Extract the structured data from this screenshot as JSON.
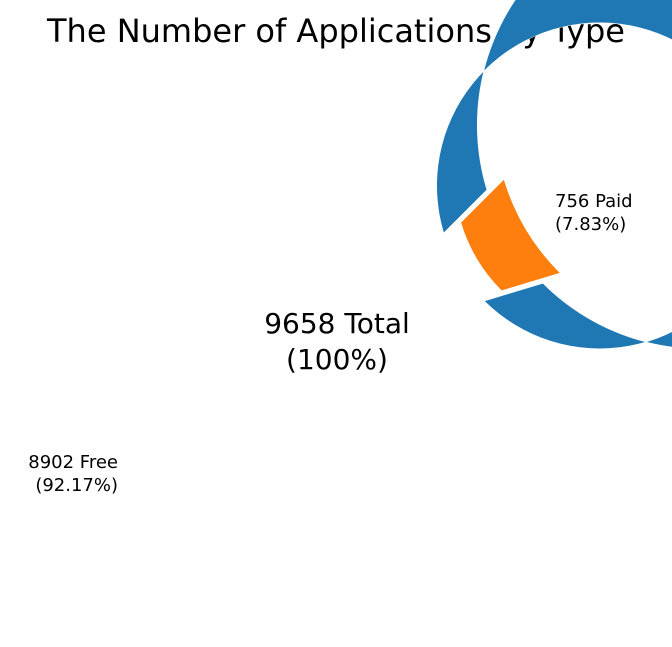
{
  "chart_data": {
    "type": "pie",
    "title": "The Number of Applications by Type",
    "center_label": {
      "line1": "9658 Total",
      "line2": "(100%)"
    },
    "slices": [
      {
        "label": "Free",
        "value": 8902,
        "percent_text": "(92.17%)",
        "label_text": "8902 Free",
        "color": "#1f77b4"
      },
      {
        "label": "Paid",
        "value": 756,
        "percent_text": "(7.83%)",
        "label_text": "756 Paid",
        "color": "#ff7f0e"
      }
    ],
    "start_angle_deg": 45,
    "donut": true
  }
}
